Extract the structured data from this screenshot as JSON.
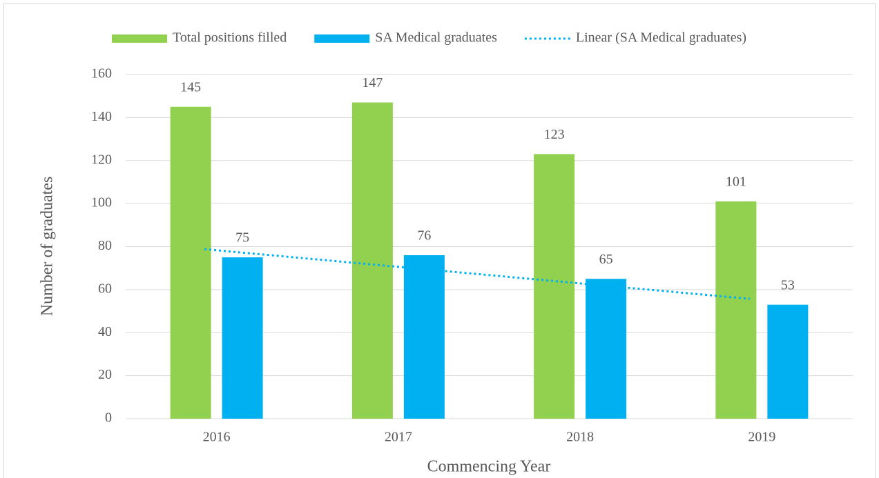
{
  "chart_data": {
    "type": "bar",
    "categories": [
      "2016",
      "2017",
      "2018",
      "2019"
    ],
    "series": [
      {
        "name": "Total positions filled",
        "color": "#92d050",
        "values": [
          145,
          147,
          123,
          101
        ]
      },
      {
        "name": "SA Medical graduates",
        "color": "#00b0f0",
        "values": [
          75,
          76,
          65,
          53
        ],
        "trendline": {
          "name": "Linear (SA Medical graduates)",
          "type": "linear",
          "color": "#00b0f0",
          "style": "dotted"
        }
      }
    ],
    "xlabel": "Commencing Year",
    "ylabel": "Number of graduates",
    "ylim": [
      0,
      160
    ],
    "yticks": [
      0,
      20,
      40,
      60,
      80,
      100,
      120,
      140,
      160
    ],
    "grid": true,
    "legend": "top"
  }
}
